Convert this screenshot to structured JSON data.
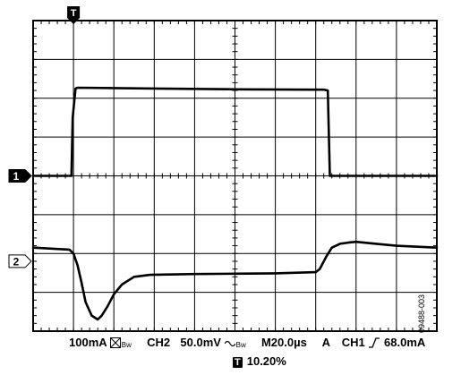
{
  "chart_data": {
    "type": "line",
    "title": "",
    "grid": true,
    "divisions": {
      "x": 10,
      "y": 8
    },
    "minor_ticks_per_division": 5,
    "x_unit": "div",
    "y_unit": "div",
    "xlim": [
      0,
      10
    ],
    "ylim": [
      -4,
      4
    ],
    "trigger_marker": {
      "label": "T",
      "x": 1.0
    },
    "channel_markers": [
      {
        "label": "1",
        "ref_y": 0.0,
        "style": "filled"
      },
      {
        "label": "2",
        "ref_y": -2.2,
        "style": "outline"
      }
    ],
    "series": [
      {
        "x": [
          0,
          0.95,
          0.98,
          1.05,
          1.1,
          3,
          5,
          7,
          7.2,
          7.3,
          7.35,
          10
        ],
        "y": [
          0.0,
          0.0,
          1.5,
          2.25,
          2.27,
          2.25,
          2.23,
          2.22,
          2.22,
          2.2,
          0.0,
          0.0
        ]
      },
      {
        "x": [
          0,
          0.9,
          1.0,
          1.1,
          1.2,
          1.3,
          1.45,
          1.6,
          1.7,
          1.85,
          2.0,
          2.2,
          2.5,
          2.9,
          4,
          5,
          6,
          7,
          7.1,
          7.25,
          7.4,
          7.6,
          7.8,
          8,
          8.5,
          9,
          10
        ],
        "y": [
          -1.85,
          -1.9,
          -2.0,
          -2.3,
          -2.75,
          -3.25,
          -3.6,
          -3.7,
          -3.6,
          -3.35,
          -3.05,
          -2.8,
          -2.6,
          -2.55,
          -2.53,
          -2.52,
          -2.51,
          -2.48,
          -2.4,
          -2.1,
          -1.85,
          -1.75,
          -1.72,
          -1.7,
          -1.75,
          -1.8,
          -1.85
        ]
      }
    ]
  },
  "status": {
    "ch1_scale": "100mA",
    "ch2_label": "CH2",
    "ch2_scale": "50.0mV",
    "timebase": "M20.0µs",
    "trigger_mode": "A",
    "trigger_source": "CH1",
    "trigger_level": "68.0mA",
    "bw_label": "B",
    "bw_suffix": "w",
    "trigger_icon_label": "T",
    "trigger_position": "10.20%"
  },
  "figure_id": "09488-003"
}
